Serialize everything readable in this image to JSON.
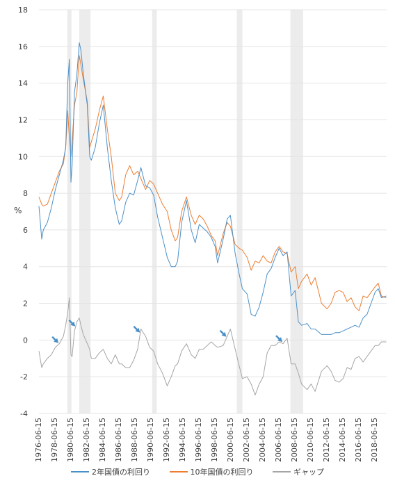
{
  "chart_data": {
    "type": "line",
    "ylabel": "%",
    "ylim": [
      -4,
      18
    ],
    "yticks": [
      -4,
      -2,
      0,
      2,
      4,
      6,
      8,
      10,
      12,
      14,
      16,
      18
    ],
    "xlim": [
      1976.45,
      2019.95
    ],
    "x_tick_labels": [
      "1976-06-15",
      "1978-06-15",
      "1980-06-15",
      "1982-06-15",
      "1984-06-15",
      "1986-06-15",
      "1988-06-15",
      "1990-06-15",
      "1992-06-15",
      "1994-06-15",
      "1996-06-15",
      "1998-06-15",
      "2000-06-15",
      "2002-06-15",
      "2004-06-15",
      "2006-06-15",
      "2008-06-15",
      "2010-06-15",
      "2012-06-15",
      "2014-06-15",
      "2016-06-15",
      "2018-06-15"
    ],
    "recessions": [
      [
        1980.0,
        1980.5
      ],
      [
        1981.5,
        1982.9
      ],
      [
        1990.6,
        1991.2
      ],
      [
        2001.2,
        2001.9
      ],
      [
        2007.9,
        2009.5
      ]
    ],
    "arrows_x": [
      1978.9,
      1981.0,
      1989.1,
      1999.9,
      2006.9
    ],
    "series": [
      {
        "name": "2年国債の利回り",
        "color": "#4a90c8",
        "x": [
          1976.45,
          1976.8,
          1977.0,
          1977.5,
          1978.0,
          1978.5,
          1979.0,
          1979.5,
          1979.8,
          1980.05,
          1980.25,
          1980.45,
          1980.6,
          1980.9,
          1981.2,
          1981.5,
          1981.7,
          1982.0,
          1982.5,
          1982.8,
          1983.0,
          1983.5,
          1984.0,
          1984.5,
          1985.0,
          1985.5,
          1986.0,
          1986.5,
          1986.8,
          1987.3,
          1987.8,
          1988.3,
          1988.8,
          1989.2,
          1989.8,
          1990.3,
          1990.8,
          1991.3,
          1991.9,
          1992.5,
          1993.0,
          1993.5,
          1993.8,
          1994.3,
          1994.9,
          1995.5,
          1996.0,
          1996.5,
          1997.0,
          1997.5,
          1998.0,
          1998.5,
          1998.8,
          1999.5,
          2000.0,
          2000.4,
          2001.0,
          2001.5,
          2001.9,
          2002.5,
          2003.0,
          2003.5,
          2004.0,
          2004.5,
          2005.0,
          2005.5,
          2006.0,
          2006.5,
          2007.0,
          2007.5,
          2008.0,
          2008.5,
          2008.9,
          2009.3,
          2010.0,
          2010.5,
          2011.0,
          2011.8,
          2012.5,
          2013.0,
          2013.5,
          2014.0,
          2014.5,
          2015.0,
          2015.5,
          2016.0,
          2016.5,
          2017.0,
          2017.5,
          2018.0,
          2018.5,
          2018.9,
          2019.3,
          2019.9
        ],
        "y": [
          7.3,
          5.5,
          6.0,
          6.4,
          7.2,
          8.2,
          9.0,
          9.8,
          10.5,
          14.0,
          15.3,
          8.6,
          9.5,
          13.5,
          14.5,
          16.2,
          15.8,
          14.5,
          12.8,
          10.0,
          9.8,
          10.5,
          11.8,
          12.8,
          10.5,
          8.7,
          7.2,
          6.3,
          6.5,
          7.5,
          8.0,
          7.9,
          8.7,
          9.4,
          8.4,
          8.3,
          7.9,
          6.7,
          5.6,
          4.5,
          4.0,
          4.0,
          4.3,
          6.4,
          7.6,
          6.0,
          5.3,
          6.3,
          6.1,
          5.9,
          5.6,
          5.1,
          4.2,
          5.5,
          6.6,
          6.8,
          4.7,
          3.6,
          2.8,
          2.5,
          1.4,
          1.3,
          1.8,
          2.6,
          3.6,
          3.9,
          4.5,
          5.0,
          4.6,
          4.8,
          2.4,
          2.7,
          1.0,
          0.8,
          0.9,
          0.6,
          0.6,
          0.3,
          0.3,
          0.3,
          0.4,
          0.4,
          0.5,
          0.6,
          0.7,
          0.8,
          0.7,
          1.2,
          1.4,
          2.0,
          2.6,
          2.8,
          2.3,
          2.4
        ]
      },
      {
        "name": "10年国債の利回り",
        "color": "#ed7d31",
        "x": [
          1976.45,
          1976.8,
          1977.0,
          1977.5,
          1978.0,
          1978.5,
          1979.0,
          1979.5,
          1979.8,
          1980.05,
          1980.25,
          1980.45,
          1980.6,
          1980.9,
          1981.2,
          1981.5,
          1981.7,
          1982.0,
          1982.5,
          1982.8,
          1983.0,
          1983.5,
          1984.0,
          1984.5,
          1985.0,
          1985.5,
          1986.0,
          1986.5,
          1986.8,
          1987.3,
          1987.8,
          1988.3,
          1988.8,
          1989.2,
          1989.8,
          1990.3,
          1990.8,
          1991.3,
          1991.9,
          1992.5,
          1993.0,
          1993.5,
          1993.8,
          1994.3,
          1994.9,
          1995.5,
          1996.0,
          1996.5,
          1997.0,
          1997.5,
          1998.0,
          1998.5,
          1998.8,
          1999.5,
          2000.0,
          2000.4,
          2001.0,
          2001.5,
          2001.9,
          2002.5,
          2003.0,
          2003.5,
          2004.0,
          2004.5,
          2005.0,
          2005.5,
          2006.0,
          2006.5,
          2007.0,
          2007.5,
          2008.0,
          2008.5,
          2008.9,
          2009.3,
          2010.0,
          2010.5,
          2011.0,
          2011.8,
          2012.5,
          2013.0,
          2013.5,
          2014.0,
          2014.5,
          2015.0,
          2015.5,
          2016.0,
          2016.5,
          2017.0,
          2017.5,
          2018.0,
          2018.5,
          2018.9,
          2019.3,
          2019.9
        ],
        "y": [
          7.8,
          7.4,
          7.3,
          7.4,
          8.0,
          8.6,
          9.2,
          9.6,
          10.5,
          12.5,
          11.0,
          10.0,
          10.8,
          12.8,
          13.5,
          15.5,
          15.0,
          14.2,
          13.0,
          10.5,
          10.8,
          11.5,
          12.5,
          13.3,
          11.5,
          10.0,
          8.0,
          7.6,
          7.8,
          9.0,
          9.5,
          9.0,
          9.2,
          8.8,
          8.2,
          8.7,
          8.5,
          8.0,
          7.4,
          7.0,
          6.0,
          5.4,
          5.6,
          7.0,
          7.8,
          6.8,
          6.3,
          6.8,
          6.6,
          6.2,
          5.7,
          5.4,
          4.6,
          5.8,
          6.4,
          6.2,
          5.2,
          5.0,
          4.9,
          4.5,
          3.8,
          4.3,
          4.2,
          4.6,
          4.3,
          4.2,
          4.8,
          5.1,
          4.8,
          4.7,
          3.7,
          4.0,
          2.8,
          3.2,
          3.6,
          3.0,
          3.4,
          2.0,
          1.7,
          2.0,
          2.6,
          2.7,
          2.6,
          2.1,
          2.3,
          1.8,
          1.6,
          2.4,
          2.3,
          2.6,
          2.9,
          3.1,
          2.4,
          2.3
        ]
      },
      {
        "name": "ギャップ",
        "color": "#a5a5a5",
        "x": [
          1976.45,
          1976.8,
          1977.0,
          1977.5,
          1978.0,
          1978.5,
          1979.0,
          1979.5,
          1979.8,
          1980.05,
          1980.25,
          1980.45,
          1980.6,
          1980.9,
          1981.2,
          1981.5,
          1981.7,
          1982.0,
          1982.5,
          1982.8,
          1983.0,
          1983.5,
          1984.0,
          1984.5,
          1985.0,
          1985.5,
          1986.0,
          1986.5,
          1986.8,
          1987.3,
          1987.8,
          1988.3,
          1988.8,
          1989.2,
          1989.8,
          1990.3,
          1990.8,
          1991.3,
          1991.9,
          1992.5,
          1993.0,
          1993.5,
          1993.8,
          1994.3,
          1994.9,
          1995.5,
          1996.0,
          1996.5,
          1997.0,
          1997.5,
          1998.0,
          1998.5,
          1998.8,
          1999.5,
          2000.0,
          2000.4,
          2001.0,
          2001.5,
          2001.9,
          2002.5,
          2003.0,
          2003.5,
          2004.0,
          2004.5,
          2005.0,
          2005.5,
          2006.0,
          2006.5,
          2007.0,
          2007.5,
          2008.0,
          2008.5,
          2008.9,
          2009.3,
          2010.0,
          2010.5,
          2011.0,
          2011.8,
          2012.5,
          2013.0,
          2013.5,
          2014.0,
          2014.5,
          2015.0,
          2015.5,
          2016.0,
          2016.5,
          2017.0,
          2017.5,
          2018.0,
          2018.5,
          2018.9,
          2019.3,
          2019.9
        ],
        "y": [
          -0.6,
          -1.5,
          -1.3,
          -1.0,
          -0.8,
          -0.4,
          -0.2,
          0.2,
          0.8,
          1.5,
          2.3,
          -0.8,
          -0.9,
          0.5,
          1.0,
          1.2,
          0.8,
          0.3,
          -0.2,
          -0.5,
          -1.0,
          -1.0,
          -0.7,
          -0.5,
          -1.0,
          -1.3,
          -0.8,
          -1.3,
          -1.3,
          -1.5,
          -1.5,
          -1.1,
          -0.5,
          0.6,
          0.2,
          -0.4,
          -0.6,
          -1.3,
          -1.8,
          -2.5,
          -2.0,
          -1.4,
          -1.3,
          -0.6,
          -0.2,
          -0.8,
          -1.0,
          -0.5,
          -0.5,
          -0.3,
          -0.1,
          -0.3,
          -0.4,
          -0.3,
          0.2,
          0.6,
          -0.5,
          -1.4,
          -2.1,
          -2.0,
          -2.4,
          -3.0,
          -2.4,
          -2.0,
          -0.7,
          -0.3,
          -0.3,
          -0.1,
          -0.2,
          0.1,
          -1.3,
          -1.3,
          -1.8,
          -2.4,
          -2.7,
          -2.4,
          -2.8,
          -1.7,
          -1.4,
          -1.7,
          -2.2,
          -2.3,
          -2.1,
          -1.5,
          -1.6,
          -1.0,
          -0.9,
          -1.2,
          -0.9,
          -0.6,
          -0.3,
          -0.3,
          -0.1,
          -0.1
        ]
      }
    ]
  }
}
